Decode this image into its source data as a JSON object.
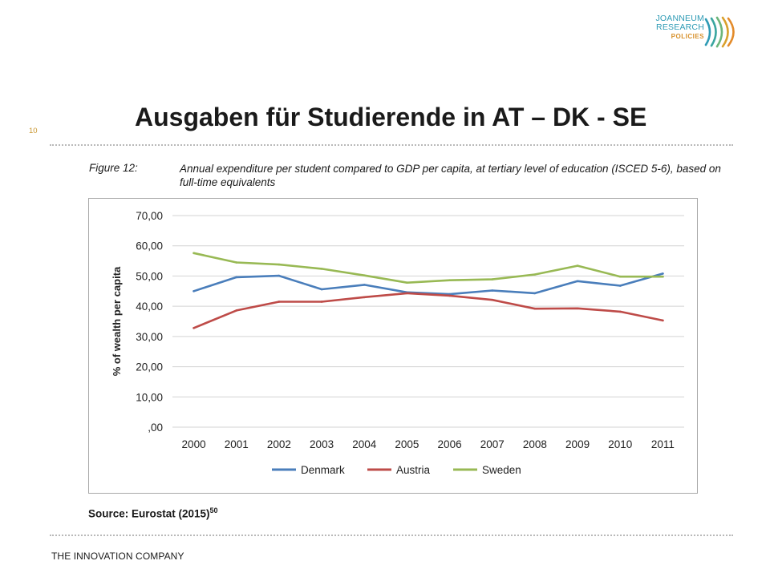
{
  "header": {
    "logo_line1": "JOANNEUM",
    "logo_line2": "RESEARCH",
    "logo_line3": "POLICIES",
    "slide_number": "10",
    "title": "Ausgaben für Studierende in AT – DK - SE"
  },
  "figure": {
    "label": "Figure 12:",
    "caption": "Annual expenditure per student compared to GDP per capita, at tertiary level of education (ISCED 5-6), based on full-time equivalents",
    "source": "Source: Eurostat (2015)",
    "source_footnote": "50"
  },
  "footer": {
    "tagline": "THE INNOVATION COMPANY"
  },
  "chart_data": {
    "type": "line",
    "title": "",
    "xlabel": "",
    "ylabel": "% of wealth per capita",
    "x": [
      "2000",
      "2001",
      "2002",
      "2003",
      "2004",
      "2005",
      "2006",
      "2007",
      "2008",
      "2009",
      "2010",
      "2011"
    ],
    "ylim": [
      0,
      70
    ],
    "yticks": [
      ",00",
      "10,00",
      "20,00",
      "30,00",
      "40,00",
      "50,00",
      "60,00",
      "70,00"
    ],
    "grid": true,
    "legend": "bottom",
    "series": [
      {
        "name": "Denmark",
        "color": "#4a7ebb",
        "values": [
          45.0,
          49.6,
          50.1,
          45.6,
          47.1,
          44.6,
          44.0,
          45.2,
          44.3,
          48.3,
          46.8,
          50.8
        ]
      },
      {
        "name": "Austria",
        "color": "#be4b48",
        "values": [
          32.8,
          38.6,
          41.5,
          41.5,
          43.0,
          44.3,
          43.5,
          42.1,
          39.2,
          39.3,
          38.2,
          35.3
        ]
      },
      {
        "name": "Sweden",
        "color": "#98b954",
        "values": [
          57.6,
          54.5,
          53.8,
          52.4,
          50.2,
          47.8,
          48.6,
          48.9,
          50.5,
          53.4,
          49.8,
          49.8
        ]
      }
    ]
  }
}
